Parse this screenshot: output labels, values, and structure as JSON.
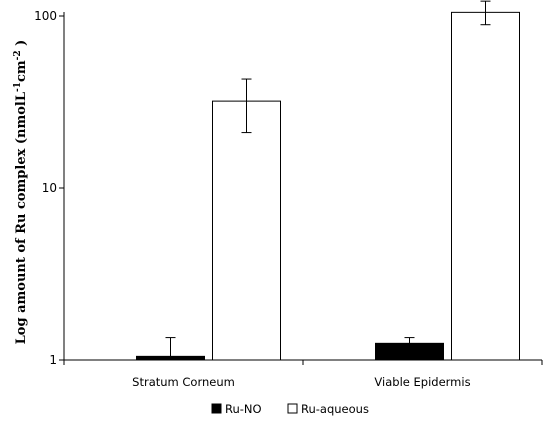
{
  "chart_data": {
    "type": "bar",
    "y_scale": "log",
    "ylim": [
      1,
      100
    ],
    "yticks": [
      1,
      10,
      100
    ],
    "ytick_labels": [
      "1",
      "10",
      "100"
    ],
    "ylabel_main": "Log amount  of Ru complex (nmolL",
    "ylabel_sup1": "-1",
    "ylabel_mid": "cm",
    "ylabel_sup2": "-2",
    "ylabel_end": " )",
    "xlabel": "",
    "categories": [
      "Stratum Corneum",
      "Viable Epidermis"
    ],
    "series": [
      {
        "name": "Ru-NO",
        "color": "#000000",
        "values": [
          1.05,
          1.25
        ],
        "error_high": [
          1.35,
          1.35
        ],
        "error_low": [
          1.0,
          1.15
        ]
      },
      {
        "name": "Ru-aqueous",
        "color": "#ffffff",
        "values": [
          32,
          105
        ],
        "error_high": [
          43,
          122
        ],
        "error_low": [
          21,
          89
        ]
      }
    ],
    "legend_position": "bottom",
    "grid": false
  }
}
